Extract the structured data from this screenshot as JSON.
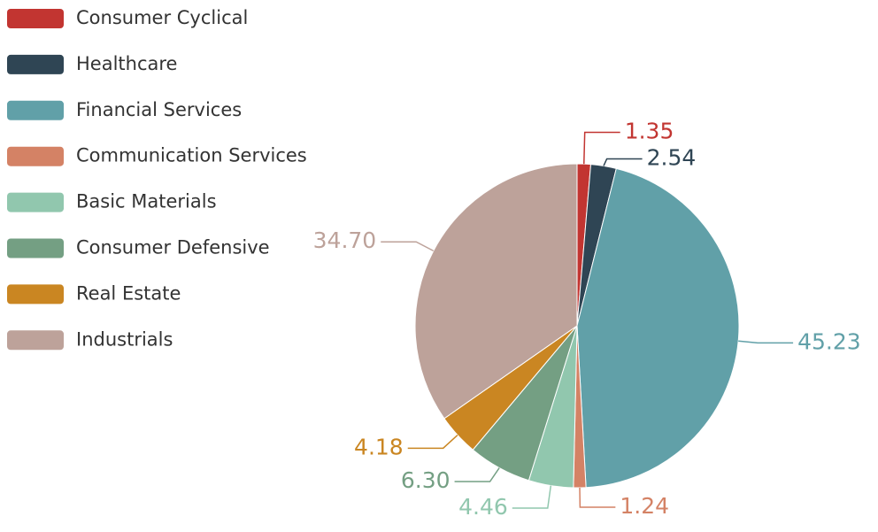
{
  "chart_data": {
    "type": "pie",
    "categories": [
      "Consumer Cyclical",
      "Healthcare",
      "Financial Services",
      "Communication Services",
      "Basic Materials",
      "Consumer Defensive",
      "Real Estate",
      "Industrials"
    ],
    "values": [
      1.35,
      2.54,
      45.23,
      1.24,
      4.46,
      6.3,
      4.18,
      34.7
    ],
    "value_labels": [
      "1.35",
      "2.54",
      "45.23",
      "1.24",
      "4.46",
      "6.30",
      "4.18",
      "34.70"
    ],
    "colors": [
      "#c23531",
      "#2f4554",
      "#61a0a8",
      "#d48265",
      "#91c7ae",
      "#749f83",
      "#ca8622",
      "#bda29a"
    ],
    "legend": "top-left"
  }
}
